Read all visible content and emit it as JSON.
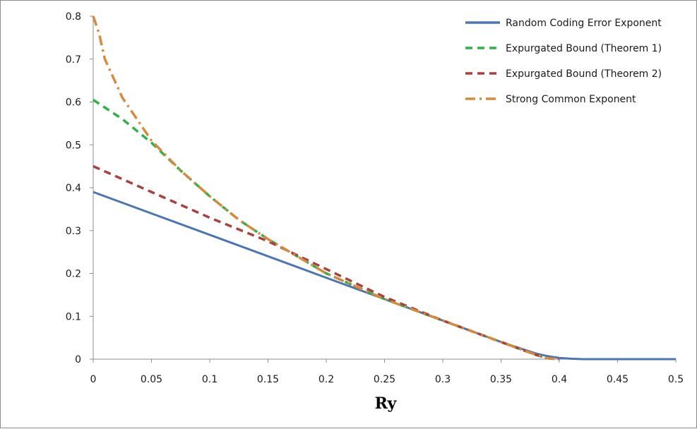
{
  "chart_data": {
    "type": "line",
    "title": "",
    "xlabel": "Ry",
    "ylabel": "",
    "xlim": [
      0,
      0.5
    ],
    "ylim": [
      0,
      0.8
    ],
    "xticks": [
      "0",
      "0.05",
      "0.1",
      "0.15",
      "0.2",
      "0.25",
      "0.3",
      "0.35",
      "0.4",
      "0.45",
      "0.5"
    ],
    "yticks": [
      "0",
      "0.1",
      "0.2",
      "0.3",
      "0.4",
      "0.5",
      "0.6",
      "0.7",
      "0.8"
    ],
    "grid": false,
    "legend_position": "top-right",
    "series": [
      {
        "name": "Random Coding Error Exponent",
        "color": "#4a76b4",
        "style": "solid",
        "x": [
          0,
          0.05,
          0.1,
          0.15,
          0.2,
          0.25,
          0.3,
          0.35,
          0.38,
          0.39,
          0.4,
          0.41,
          0.42,
          0.45,
          0.5
        ],
        "y": [
          0.39,
          0.34,
          0.29,
          0.24,
          0.19,
          0.14,
          0.09,
          0.04,
          0.013,
          0.007,
          0.003,
          0.001,
          0,
          0,
          0
        ]
      },
      {
        "name": "Expurgated Bound (Theorem 1)",
        "color": "#2db24a",
        "style": "dashed",
        "x": [
          0,
          0.025,
          0.05,
          0.075,
          0.1,
          0.125,
          0.15,
          0.2,
          0.25,
          0.3,
          0.35,
          0.38,
          0.39,
          0.4
        ],
        "y": [
          0.605,
          0.56,
          0.505,
          0.44,
          0.38,
          0.325,
          0.28,
          0.2,
          0.14,
          0.09,
          0.04,
          0.01,
          0.002,
          0
        ]
      },
      {
        "name": "Expurgated Bound (Theorem 2)",
        "color": "#a8413f",
        "style": "dashed",
        "x": [
          0,
          0.05,
          0.1,
          0.15,
          0.2,
          0.25,
          0.3,
          0.35,
          0.38,
          0.39,
          0.4
        ],
        "y": [
          0.45,
          0.39,
          0.33,
          0.275,
          0.21,
          0.145,
          0.09,
          0.04,
          0.01,
          0.002,
          0
        ]
      },
      {
        "name": "Strong Common Exponent",
        "color": "#d68b3c",
        "style": "dashdot",
        "x": [
          0,
          0.005,
          0.01,
          0.025,
          0.05,
          0.075,
          0.1,
          0.125,
          0.15,
          0.2,
          0.25,
          0.3,
          0.35,
          0.38,
          0.39,
          0.4
        ],
        "y": [
          0.8,
          0.76,
          0.7,
          0.61,
          0.51,
          0.44,
          0.38,
          0.325,
          0.28,
          0.2,
          0.14,
          0.09,
          0.04,
          0.01,
          0.002,
          0
        ]
      }
    ]
  }
}
